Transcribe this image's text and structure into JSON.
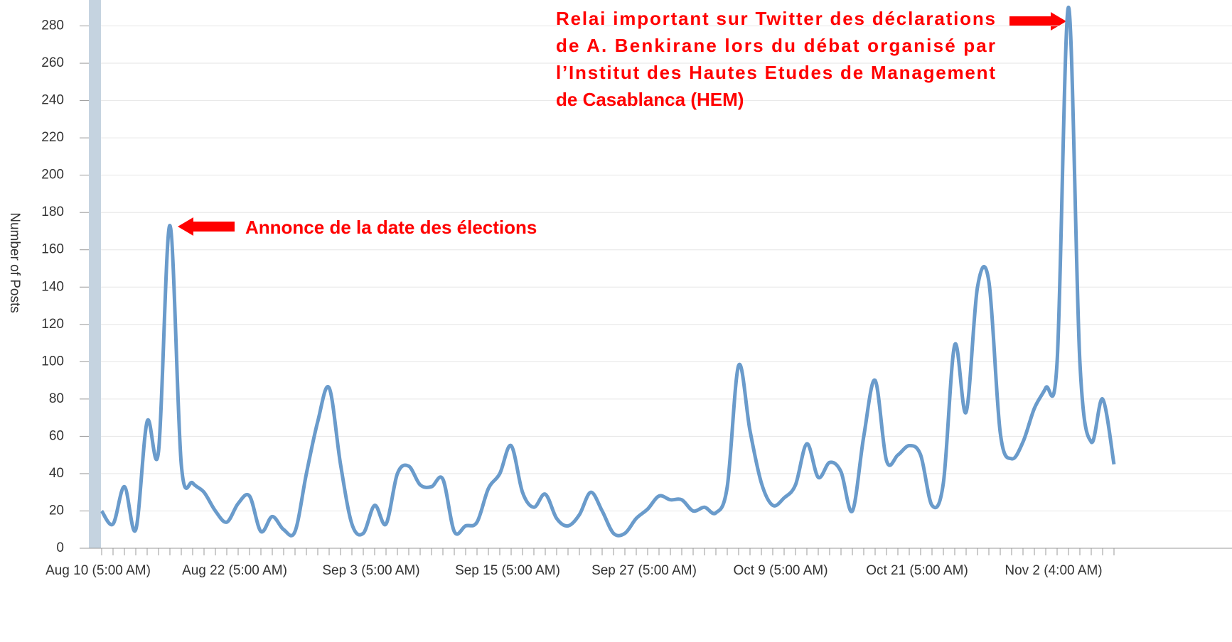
{
  "chart_data": {
    "type": "line",
    "y_label": "Number of Posts",
    "categories": [
      "Aug 10 (5:00 AM)",
      null,
      null,
      null,
      null,
      null,
      null,
      null,
      null,
      null,
      null,
      null,
      "Aug 22 (5:00 AM)",
      null,
      null,
      null,
      null,
      null,
      null,
      null,
      null,
      null,
      null,
      null,
      "Sep 3 (5:00 AM)",
      null,
      null,
      null,
      null,
      null,
      null,
      null,
      null,
      null,
      null,
      null,
      "Sep 15 (5:00 AM)",
      null,
      null,
      null,
      null,
      null,
      null,
      null,
      null,
      null,
      null,
      null,
      "Sep 27 (5:00 AM)",
      null,
      null,
      null,
      null,
      null,
      null,
      null,
      null,
      null,
      null,
      null,
      "Oct 9 (5:00 AM)",
      null,
      null,
      null,
      null,
      null,
      null,
      null,
      null,
      null,
      null,
      null,
      "Oct 21 (5:00 AM)",
      null,
      null,
      null,
      null,
      null,
      null,
      null,
      null,
      null,
      null,
      null,
      "Nov 2 (4:00 AM)",
      null,
      null,
      null,
      null,
      null
    ],
    "series": [
      {
        "name": "Number of Posts",
        "color": "#6a9bcb",
        "values": [
          20,
          13,
          33,
          10,
          68,
          52,
          173,
          45,
          35,
          30,
          20,
          14,
          24,
          28,
          9,
          17,
          10,
          9,
          40,
          68,
          86,
          45,
          13,
          8,
          23,
          13,
          40,
          44,
          34,
          33,
          37,
          9,
          12,
          14,
          32,
          40,
          55,
          30,
          22,
          29,
          16,
          12,
          18,
          30,
          20,
          8,
          8,
          16,
          21,
          28,
          26,
          26,
          20,
          22,
          19,
          33,
          98,
          63,
          35,
          23,
          27,
          34,
          56,
          38,
          46,
          41,
          20,
          60,
          90,
          47,
          50,
          55,
          50,
          23,
          35,
          109,
          73,
          140,
          143,
          62,
          48,
          57,
          75,
          86,
          100,
          290,
          100,
          57,
          80,
          45
        ]
      }
    ],
    "ylim": [
      0,
      292
    ],
    "yticks": [
      0,
      20,
      40,
      60,
      80,
      100,
      120,
      140,
      160,
      180,
      200,
      220,
      240,
      260,
      280
    ],
    "grid": true,
    "annotations": [
      {
        "lines": [
          "Annonce de la date des élections"
        ],
        "color": "#ff0000"
      },
      {
        "lines": [
          "Relai important sur Twitter des déclarations",
          "de A. Benkirane lors du débat organisé par",
          "l’Institut des Hautes Etudes de Management",
          "de Casablanca (HEM)"
        ],
        "color": "#ff0000"
      }
    ]
  }
}
